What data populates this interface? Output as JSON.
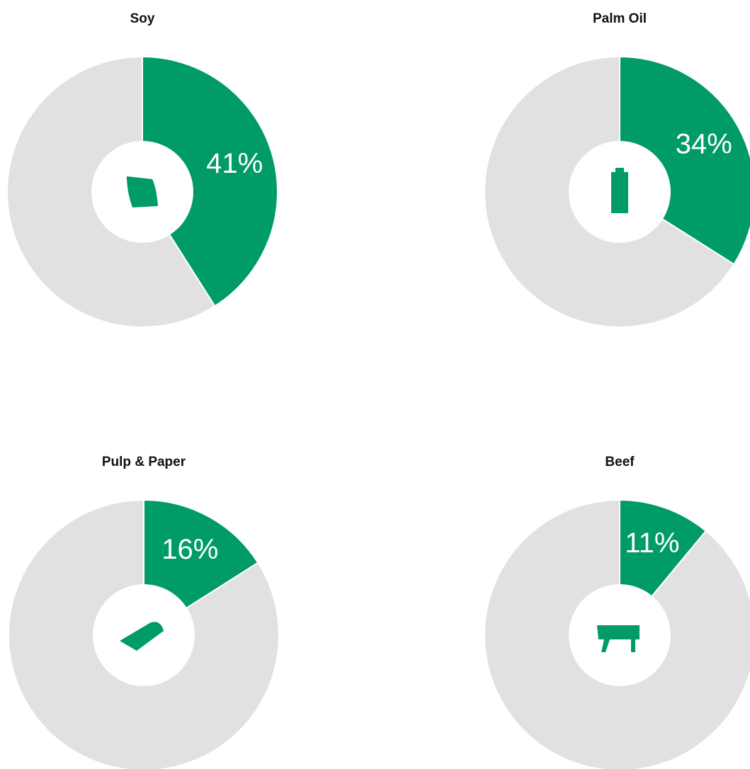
{
  "chart_data": [
    {
      "type": "pie",
      "title": "Soy",
      "values": [
        41,
        59
      ],
      "value_labels": [
        "41%",
        null
      ],
      "colors": [
        "#009b67",
        "#e1e1e3"
      ],
      "donut": true
    },
    {
      "type": "pie",
      "title": "Palm Oil",
      "values": [
        34,
        66
      ],
      "value_labels": [
        "34%",
        null
      ],
      "colors": [
        "#009b67",
        "#e1e1e3"
      ],
      "donut": true
    },
    {
      "type": "pie",
      "title": "Pulp & Paper",
      "values": [
        16,
        84
      ],
      "value_labels": [
        "16%",
        null
      ],
      "colors": [
        "#009b67",
        "#e1e1e3"
      ],
      "donut": true
    },
    {
      "type": "pie",
      "title": "Beef",
      "values": [
        11,
        89
      ],
      "value_labels": [
        "11%",
        null
      ],
      "colors": [
        "#009b67",
        "#e1e1e3"
      ],
      "donut": true
    }
  ]
}
